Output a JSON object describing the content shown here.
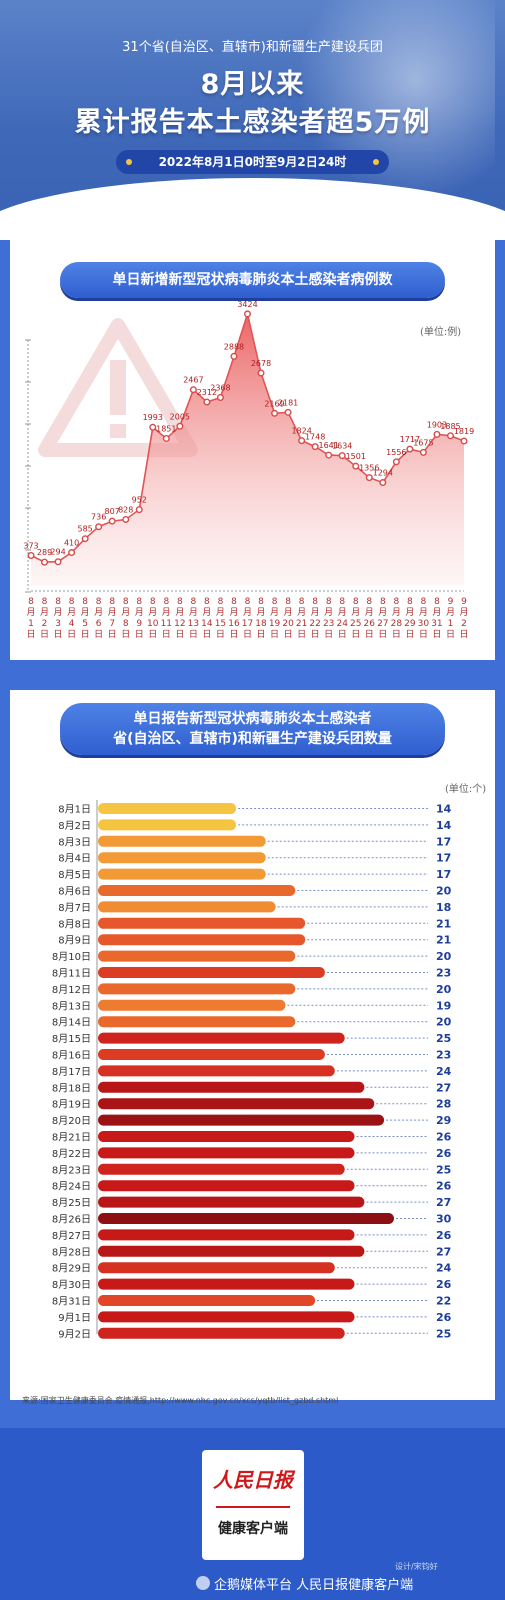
{
  "header": {
    "subtitle": "31个省(自治区、直辖市)和新疆生产建设兵团",
    "title_line1": "8月以来",
    "title_line2": "累计报告本土感染者超5万例",
    "date_range": "2022年8月1日0时至9月2日24时"
  },
  "section1": {
    "title": "单日新增新型冠状病毒肺炎本土感染者病例数",
    "unit": "(单位:例)"
  },
  "section2": {
    "title_line1": "单日报告新型冠状病毒肺炎本土感染者",
    "title_line2": "省(自治区、直辖市)和新疆生产建设兵团数量",
    "unit": "(单位:个)"
  },
  "source": "来源:国家卫生健康委员会,疫情通报,http://www.nhc.gov.cn/xcs/yqtb/list_gzbd.shtml",
  "footer": {
    "logo_text": "人民日报",
    "logo_sub": "健康客户端",
    "designer": "设计/宋钧好",
    "watermark": "企鹅媒体平台 人民日报健康客户端"
  },
  "colors": {
    "area_fill": "#f06a6a",
    "line": "#e05555",
    "bar_low": "#f5c542",
    "bar_high": "#8c0f12"
  },
  "chart_data": [
    {
      "type": "area",
      "title": "单日新增新型冠状病毒肺炎本土感染者病例数",
      "ylabel": "(单位:例)",
      "categories": [
        "8月1日",
        "8月2日",
        "8月3日",
        "8月4日",
        "8月5日",
        "8月6日",
        "8月7日",
        "8月8日",
        "8月9日",
        "8月10日",
        "8月11日",
        "8月12日",
        "8月13日",
        "8月14日",
        "8月15日",
        "8月16日",
        "8月17日",
        "8月18日",
        "8月19日",
        "8月20日",
        "8月21日",
        "8月22日",
        "8月23日",
        "8月24日",
        "8月25日",
        "8月26日",
        "8月27日",
        "8月28日",
        "8月29日",
        "8月30日",
        "8月31日",
        "9月1日",
        "9月2日"
      ],
      "values": [
        373,
        289,
        294,
        410,
        585,
        736,
        807,
        828,
        952,
        1993,
        1851,
        2005,
        2467,
        2312,
        2368,
        2888,
        3424,
        2678,
        2169,
        2181,
        1824,
        1748,
        1641,
        1634,
        1501,
        1356,
        1294,
        1556,
        1717,
        1675,
        1903,
        1885,
        1819
      ],
      "ylim": [
        0,
        3600
      ]
    },
    {
      "type": "bar",
      "title": "单日报告新型冠状病毒肺炎本土感染者省(自治区、直辖市)和新疆生产建设兵团数量",
      "ylabel": "(单位:个)",
      "categories": [
        "8月1日",
        "8月2日",
        "8月3日",
        "8月4日",
        "8月5日",
        "8月6日",
        "8月7日",
        "8月8日",
        "8月9日",
        "8月10日",
        "8月11日",
        "8月12日",
        "8月13日",
        "8月14日",
        "8月15日",
        "8月16日",
        "8月17日",
        "8月18日",
        "8月19日",
        "8月20日",
        "8月21日",
        "8月22日",
        "8月23日",
        "8月24日",
        "8月25日",
        "8月26日",
        "8月27日",
        "8月28日",
        "8月29日",
        "8月30日",
        "8月31日",
        "9月1日",
        "9月2日"
      ],
      "values": [
        14,
        14,
        17,
        17,
        17,
        20,
        18,
        21,
        21,
        20,
        23,
        20,
        19,
        20,
        25,
        23,
        24,
        27,
        28,
        29,
        26,
        26,
        25,
        26,
        27,
        30,
        26,
        27,
        24,
        26,
        22,
        26,
        25
      ],
      "xlim": [
        0,
        30
      ]
    }
  ]
}
